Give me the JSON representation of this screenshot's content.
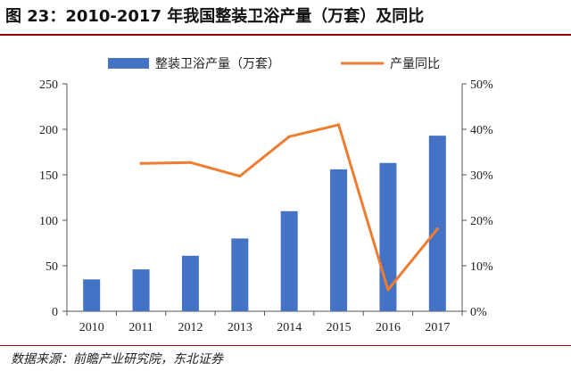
{
  "title": "图 23：2010-2017 年我国整装卫浴产量（万套）及同比",
  "source": "数据来源：前瞻产业研究院，东北证券",
  "chart_data": {
    "type": "bar+line",
    "categories": [
      "2010",
      "2011",
      "2012",
      "2013",
      "2014",
      "2015",
      "2016",
      "2017"
    ],
    "series": [
      {
        "name": "整装卫浴产量（万套）",
        "type": "bar",
        "axis": "left",
        "values": [
          35,
          46,
          61,
          80,
          110,
          156,
          163,
          193
        ],
        "color": "#4472c4"
      },
      {
        "name": "产量同比",
        "type": "line",
        "axis": "right",
        "values": [
          null,
          0.325,
          0.327,
          0.297,
          0.384,
          0.41,
          0.047,
          0.181
        ],
        "color": "#ed7d31"
      }
    ],
    "y_left": {
      "lim": [
        0,
        250
      ],
      "ticks": [
        "0",
        "50",
        "100",
        "150",
        "200",
        "250"
      ]
    },
    "y_right": {
      "lim": [
        0,
        0.5
      ],
      "ticks": [
        "0%",
        "10%",
        "20%",
        "30%",
        "40%",
        "50%"
      ]
    },
    "legend_position": "top-center",
    "grid": false
  }
}
